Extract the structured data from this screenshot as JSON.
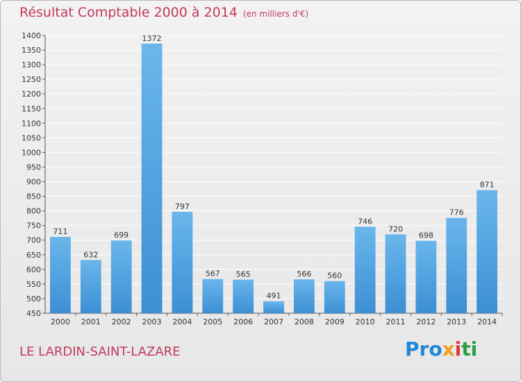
{
  "title": "Résultat Comptable 2000 à 2014",
  "subtitle": "(en milliers d'€)",
  "commune": "LE LARDIN-SAINT-LAZARE",
  "logo": {
    "p1": "Pro",
    "p2": "x",
    "p3": "i",
    "p4": "ti"
  },
  "colors": {
    "bar": "#3d8fd4",
    "bar_light": "#6ab6ec",
    "title": "#c2395d",
    "grid": "#ffffff"
  },
  "chart_data": {
    "type": "bar",
    "categories": [
      "2000",
      "2001",
      "2002",
      "2003",
      "2004",
      "2005",
      "2006",
      "2007",
      "2008",
      "2009",
      "2010",
      "2011",
      "2012",
      "2013",
      "2014"
    ],
    "values": [
      711,
      632,
      699,
      1372,
      797,
      567,
      565,
      491,
      566,
      560,
      746,
      720,
      698,
      776,
      871
    ],
    "ylim": [
      450,
      1400
    ],
    "yticks": [
      450,
      500,
      550,
      600,
      650,
      700,
      750,
      800,
      850,
      900,
      950,
      1000,
      1050,
      1100,
      1150,
      1200,
      1250,
      1300,
      1350,
      1400
    ],
    "grid": true
  }
}
